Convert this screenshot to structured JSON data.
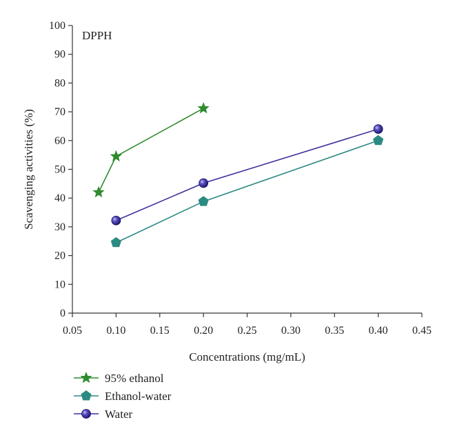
{
  "chart_data": {
    "type": "line",
    "annotation": "DPPH",
    "xlabel": "Concentrations (mg/mL)",
    "ylabel": "Scavenging activities (%)",
    "xlim": [
      0.05,
      0.45
    ],
    "ylim": [
      0,
      100
    ],
    "xticks": [
      "0.05",
      "0.10",
      "0.15",
      "0.20",
      "0.25",
      "0.30",
      "0.35",
      "0.40",
      "0.45"
    ],
    "yticks": [
      "0",
      "10",
      "20",
      "30",
      "40",
      "50",
      "60",
      "70",
      "80",
      "90",
      "100"
    ],
    "grid": false,
    "legend_position": "bottom-left",
    "series": [
      {
        "name": "95% ethanol",
        "marker": "star",
        "color": "#2e8b2e",
        "x": [
          0.08,
          0.1,
          0.2
        ],
        "y": [
          42,
          54.5,
          71.2
        ]
      },
      {
        "name": "Ethanol-water",
        "marker": "pentagon",
        "color": "#2b8a82",
        "x": [
          0.1,
          0.2,
          0.4
        ],
        "y": [
          24.5,
          38.8,
          60
        ]
      },
      {
        "name": "Water",
        "marker": "circle",
        "color": "#3a2f9e",
        "x": [
          0.1,
          0.2,
          0.4
        ],
        "y": [
          32.2,
          45.2,
          64
        ]
      }
    ]
  }
}
